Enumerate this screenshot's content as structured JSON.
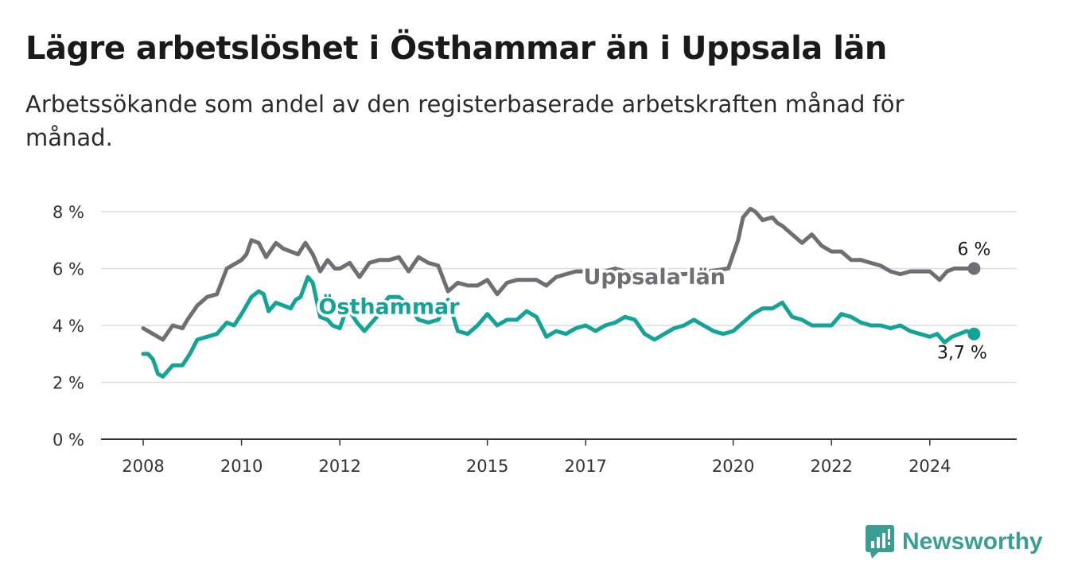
{
  "title": "Lägre arbetslöshet i Östhammar än i Uppsala län",
  "subtitle": "Arbetssökande som andel av den registerbaserade arbetskraften månad för månad.",
  "brand": {
    "name": "Newsworthy",
    "icon": "bar-chart-logo-icon",
    "color": "#3a9e94"
  },
  "chart_data": {
    "type": "line",
    "ylim": [
      0,
      8
    ],
    "xlim": [
      2007.8,
      2025.65
    ],
    "y_ticks": [
      {
        "value": 0,
        "label": "0 %"
      },
      {
        "value": 2,
        "label": "2 %"
      },
      {
        "value": 4,
        "label": "4 %"
      },
      {
        "value": 6,
        "label": "6 %"
      },
      {
        "value": 8,
        "label": "8 %"
      }
    ],
    "x_ticks": [
      {
        "value": 2008,
        "label": "2008"
      },
      {
        "value": 2010,
        "label": "2010"
      },
      {
        "value": 2012,
        "label": "2012"
      },
      {
        "value": 2015,
        "label": "2015"
      },
      {
        "value": 2017,
        "label": "2017"
      },
      {
        "value": 2020,
        "label": "2020"
      },
      {
        "value": 2022,
        "label": "2022"
      },
      {
        "value": 2024,
        "label": "2024"
      }
    ],
    "grid": true,
    "series": [
      {
        "name": "Uppsala län",
        "color": "#6e6e73",
        "end_label": "6 %",
        "x": [
          2008.0,
          2008.3,
          2008.4,
          2008.6,
          2008.8,
          2008.9,
          2009.1,
          2009.3,
          2009.5,
          2009.7,
          2009.9,
          2010.0,
          2010.1,
          2010.2,
          2010.35,
          2010.5,
          2010.7,
          2010.85,
          2011.0,
          2011.15,
          2011.3,
          2011.45,
          2011.6,
          2011.75,
          2011.9,
          2012.0,
          2012.2,
          2012.4,
          2012.6,
          2012.8,
          2013.0,
          2013.2,
          2013.4,
          2013.6,
          2013.8,
          2014.0,
          2014.2,
          2014.4,
          2014.6,
          2014.8,
          2015.0,
          2015.2,
          2015.4,
          2015.6,
          2015.8,
          2016.0,
          2016.2,
          2016.4,
          2016.6,
          2016.8,
          2017.0,
          2017.2,
          2017.4,
          2017.6,
          2017.8,
          2018.0,
          2018.5,
          2019.0,
          2019.5,
          2019.9,
          2020.1,
          2020.2,
          2020.35,
          2020.45,
          2020.6,
          2020.8,
          2020.9,
          2021.0,
          2021.2,
          2021.4,
          2021.6,
          2021.8,
          2022.0,
          2022.2,
          2022.4,
          2022.6,
          2022.8,
          2023.0,
          2023.2,
          2023.4,
          2023.6,
          2023.8,
          2024.0,
          2024.2,
          2024.35,
          2024.5,
          2024.7,
          2024.9
        ],
        "y": [
          3.9,
          3.6,
          3.5,
          4.0,
          3.9,
          4.2,
          4.7,
          5.0,
          5.1,
          6.0,
          6.2,
          6.3,
          6.5,
          7.0,
          6.9,
          6.4,
          6.9,
          6.7,
          6.6,
          6.5,
          6.9,
          6.5,
          5.9,
          6.3,
          6.0,
          6.0,
          6.2,
          5.7,
          6.2,
          6.3,
          6.3,
          6.4,
          5.9,
          6.4,
          6.2,
          6.1,
          5.2,
          5.5,
          5.4,
          5.4,
          5.6,
          5.1,
          5.5,
          5.6,
          5.6,
          5.6,
          5.4,
          5.7,
          5.8,
          5.9,
          5.9,
          5.7,
          5.9,
          6.0,
          5.9,
          5.8,
          5.8,
          5.8,
          5.9,
          6.0,
          7.0,
          7.8,
          8.1,
          8.0,
          7.7,
          7.8,
          7.6,
          7.5,
          7.2,
          6.9,
          7.2,
          6.8,
          6.6,
          6.6,
          6.3,
          6.3,
          6.2,
          6.1,
          5.9,
          5.8,
          5.9,
          5.9,
          5.9,
          5.6,
          5.9,
          6.0,
          6.0,
          6.0
        ]
      },
      {
        "name": "Östhammar",
        "color": "#14a397",
        "end_label": "3,7 %",
        "x": [
          2008.0,
          2008.1,
          2008.2,
          2008.3,
          2008.4,
          2008.5,
          2008.6,
          2008.8,
          2008.95,
          2009.1,
          2009.3,
          2009.5,
          2009.7,
          2009.85,
          2010.0,
          2010.1,
          2010.2,
          2010.35,
          2010.45,
          2010.55,
          2010.7,
          2010.85,
          2011.0,
          2011.1,
          2011.2,
          2011.35,
          2011.45,
          2011.6,
          2011.75,
          2011.85,
          2012.0,
          2012.1,
          2012.2,
          2012.35,
          2012.5,
          2012.6,
          2012.75,
          2012.9,
          2013.0,
          2013.2,
          2013.4,
          2013.6,
          2013.8,
          2014.0,
          2014.2,
          2014.4,
          2014.6,
          2014.8,
          2015.0,
          2015.2,
          2015.4,
          2015.6,
          2015.8,
          2016.0,
          2016.2,
          2016.4,
          2016.6,
          2016.8,
          2017.0,
          2017.2,
          2017.4,
          2017.6,
          2017.8,
          2018.0,
          2018.2,
          2018.4,
          2018.6,
          2018.8,
          2019.0,
          2019.2,
          2019.4,
          2019.6,
          2019.8,
          2020.0,
          2020.2,
          2020.4,
          2020.6,
          2020.8,
          2021.0,
          2021.2,
          2021.4,
          2021.6,
          2021.8,
          2022.0,
          2022.2,
          2022.4,
          2022.6,
          2022.8,
          2023.0,
          2023.2,
          2023.4,
          2023.6,
          2023.8,
          2024.0,
          2024.15,
          2024.3,
          2024.45,
          2024.6,
          2024.75,
          2024.9
        ],
        "y": [
          3.0,
          3.0,
          2.8,
          2.3,
          2.2,
          2.4,
          2.6,
          2.6,
          3.0,
          3.5,
          3.6,
          3.7,
          4.1,
          4.0,
          4.4,
          4.7,
          5.0,
          5.2,
          5.1,
          4.5,
          4.8,
          4.7,
          4.6,
          4.9,
          5.0,
          5.7,
          5.5,
          4.3,
          4.2,
          4.0,
          3.9,
          4.4,
          4.5,
          4.1,
          3.8,
          4.0,
          4.3,
          4.8,
          5.0,
          5.0,
          4.7,
          4.2,
          4.1,
          4.2,
          4.9,
          3.8,
          3.7,
          4.0,
          4.4,
          4.0,
          4.2,
          4.2,
          4.5,
          4.3,
          3.6,
          3.8,
          3.7,
          3.9,
          4.0,
          3.8,
          4.0,
          4.1,
          4.3,
          4.2,
          3.7,
          3.5,
          3.7,
          3.9,
          4.0,
          4.2,
          4.0,
          3.8,
          3.7,
          3.8,
          4.1,
          4.4,
          4.6,
          4.6,
          4.8,
          4.3,
          4.2,
          4.0,
          4.0,
          4.0,
          4.4,
          4.3,
          4.1,
          4.0,
          4.0,
          3.9,
          4.0,
          3.8,
          3.7,
          3.6,
          3.7,
          3.4,
          3.6,
          3.7,
          3.8,
          3.7
        ]
      }
    ],
    "labels": [
      {
        "text": "Uppsala län",
        "series": 0,
        "x": 2018.4,
        "y": 5.45
      },
      {
        "text": "Östhammar",
        "series": 1,
        "x": 2013.0,
        "y": 4.4
      }
    ]
  }
}
